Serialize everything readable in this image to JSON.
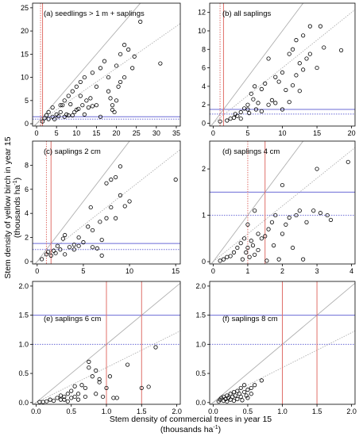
{
  "y_axis_label": {
    "line1": "Stem density of yellow birch in year 15",
    "line2_prefix": "(thousands ha",
    "line2_sup": "-1",
    "line2_suffix": ")"
  },
  "x_axis_label": {
    "line1": "Stem density of commercial trees in year 15",
    "line2_prefix": "(thousands ha",
    "line2_sup": "-1",
    "line2_suffix": ")"
  },
  "colors": {
    "frame": "#000000",
    "point": "#000000",
    "reference_line": "#b0b0b0",
    "vertical_ref": "#e0706a",
    "horizontal_ref": "#6b6bd6"
  },
  "chart_data": [
    {
      "type": "scatter",
      "title": "(a) seedlings > 1 m + saplings",
      "xlim": [
        -1,
        36
      ],
      "ylim": [
        -0.5,
        26
      ],
      "xticks": [
        "0",
        "5",
        "10",
        "15",
        "20",
        "25",
        "30",
        "35"
      ],
      "xtick_values": [
        0,
        5,
        10,
        15,
        20,
        25,
        30,
        35
      ],
      "yticks": [
        "0",
        "5",
        "10",
        "15",
        "20",
        "25"
      ],
      "ytick_values": [
        0,
        5,
        10,
        15,
        20,
        25
      ],
      "vlines_solid": [
        1.5
      ],
      "vlines_dotted": [
        1.0
      ],
      "hlines_solid": [
        1.5
      ],
      "hlines_dotted": [
        1.0
      ],
      "lines": [
        {
          "style": "solid",
          "slope": 1
        },
        {
          "style": "dotted",
          "slope": 0.6
        }
      ],
      "points": [
        [
          1.5,
          0.5
        ],
        [
          2,
          1.2
        ],
        [
          2.5,
          1.8
        ],
        [
          3,
          1
        ],
        [
          3,
          2.5
        ],
        [
          4,
          3.5
        ],
        [
          4,
          1.5
        ],
        [
          4.5,
          1
        ],
        [
          5,
          2
        ],
        [
          5.5,
          1.6
        ],
        [
          6,
          4
        ],
        [
          6,
          2.5
        ],
        [
          6.5,
          4
        ],
        [
          7,
          1.5
        ],
        [
          7,
          5
        ],
        [
          7.5,
          2
        ],
        [
          8,
          1.8
        ],
        [
          8,
          6
        ],
        [
          8.5,
          4.2
        ],
        [
          9,
          7
        ],
        [
          9,
          1.8
        ],
        [
          9.5,
          2.5
        ],
        [
          10,
          3
        ],
        [
          10,
          8
        ],
        [
          10.5,
          3.2
        ],
        [
          11,
          6
        ],
        [
          11,
          9
        ],
        [
          11.5,
          4
        ],
        [
          12,
          2
        ],
        [
          12,
          10
        ],
        [
          12.5,
          5
        ],
        [
          13,
          3.5
        ],
        [
          13.5,
          5.5
        ],
        [
          14,
          3.8
        ],
        [
          14,
          11
        ],
        [
          15,
          4
        ],
        [
          15,
          8
        ],
        [
          16,
          12
        ],
        [
          16,
          1.5
        ],
        [
          17,
          13.5
        ],
        [
          18,
          7
        ],
        [
          18,
          10
        ],
        [
          18.5,
          5.5
        ],
        [
          19,
          3
        ],
        [
          19,
          4
        ],
        [
          19.5,
          2.5
        ],
        [
          20,
          5
        ],
        [
          20,
          12.5
        ],
        [
          20.5,
          8
        ],
        [
          21,
          9
        ],
        [
          21,
          15
        ],
        [
          22,
          17
        ],
        [
          22,
          10
        ],
        [
          23,
          16
        ],
        [
          24,
          12
        ],
        [
          24.5,
          14.5
        ],
        [
          26,
          22
        ],
        [
          31,
          13
        ]
      ]
    },
    {
      "type": "scatter",
      "title": "(b) all saplings",
      "xlim": [
        -0.5,
        20.5
      ],
      "ylim": [
        -0.3,
        13
      ],
      "xticks": [
        "0",
        "5",
        "10",
        "15",
        "20"
      ],
      "xtick_values": [
        0,
        5,
        10,
        15,
        20
      ],
      "yticks": [
        "0",
        "2",
        "4",
        "6",
        "8",
        "10",
        "12"
      ],
      "ytick_values": [
        0,
        2,
        4,
        6,
        8,
        10,
        12
      ],
      "vlines_solid": [
        1.5
      ],
      "vlines_dotted": [
        1.0
      ],
      "hlines_solid": [
        1.5
      ],
      "hlines_dotted": [
        1.0
      ],
      "lines": [
        {
          "style": "solid",
          "slope": 1
        },
        {
          "style": "dotted",
          "slope": 0.6
        }
      ],
      "points": [
        [
          1,
          0.2
        ],
        [
          2,
          0.3
        ],
        [
          2.5,
          0.5
        ],
        [
          3,
          0.6
        ],
        [
          3.2,
          1
        ],
        [
          3.5,
          0.8
        ],
        [
          4,
          1.2
        ],
        [
          4,
          0.5
        ],
        [
          4.5,
          1.6
        ],
        [
          5,
          1.5
        ],
        [
          5,
          2
        ],
        [
          5.2,
          1.1
        ],
        [
          5.5,
          3.2
        ],
        [
          5.8,
          2.6
        ],
        [
          6,
          4
        ],
        [
          6.2,
          1.5
        ],
        [
          6.5,
          2.2
        ],
        [
          7,
          3.7
        ],
        [
          7,
          1.3
        ],
        [
          7.5,
          4.3
        ],
        [
          8,
          2
        ],
        [
          8,
          7
        ],
        [
          8.5,
          2.5
        ],
        [
          9,
          5
        ],
        [
          9,
          2.2
        ],
        [
          9.5,
          4.5
        ],
        [
          10,
          1.5
        ],
        [
          10,
          5.5
        ],
        [
          10.5,
          3.6
        ],
        [
          11,
          7.5
        ],
        [
          11,
          2.3
        ],
        [
          11.5,
          8
        ],
        [
          11.5,
          4.1
        ],
        [
          12,
          5.2
        ],
        [
          12,
          9
        ],
        [
          12.5,
          3.5
        ],
        [
          12.5,
          6.5
        ],
        [
          13,
          9.5
        ],
        [
          13,
          5.8
        ],
        [
          13.5,
          7
        ],
        [
          14,
          10.5
        ],
        [
          14,
          7.5
        ],
        [
          15,
          6
        ],
        [
          15.5,
          10.5
        ],
        [
          16,
          8.2
        ],
        [
          18.5,
          7.9
        ]
      ]
    },
    {
      "type": "scatter",
      "title": "(c) saplings 2 cm",
      "xlim": [
        -0.5,
        15.5
      ],
      "ylim": [
        -0.2,
        10
      ],
      "xticks": [
        "0",
        "5",
        "10",
        "15"
      ],
      "xtick_values": [
        0,
        5,
        10,
        15
      ],
      "yticks": [
        "0",
        "2",
        "4",
        "6",
        "8"
      ],
      "ytick_values": [
        0,
        2,
        4,
        6,
        8
      ],
      "vlines_solid": [
        1.5
      ],
      "vlines_dotted": [
        1.0
      ],
      "hlines_solid": [
        1.5
      ],
      "hlines_dotted": [
        1.0
      ],
      "lines": [
        {
          "style": "solid",
          "slope": 1
        },
        {
          "style": "dotted",
          "slope": 0.6
        }
      ],
      "points": [
        [
          0.5,
          0.2
        ],
        [
          1,
          0.6
        ],
        [
          1.2,
          0.8
        ],
        [
          1.5,
          0.5
        ],
        [
          1.8,
          0.9
        ],
        [
          2,
          0.7
        ],
        [
          2.2,
          1.3
        ],
        [
          2.5,
          1
        ],
        [
          2.8,
          1.9
        ],
        [
          3,
          0.6
        ],
        [
          3,
          2.2
        ],
        [
          3.5,
          1.2
        ],
        [
          4,
          1.4
        ],
        [
          4,
          1
        ],
        [
          4.5,
          2
        ],
        [
          4.5,
          1.3
        ],
        [
          5,
          1.6
        ],
        [
          5.5,
          2.9
        ],
        [
          5.8,
          4.5
        ],
        [
          6,
          1.2
        ],
        [
          6,
          2.6
        ],
        [
          6.5,
          1.1
        ],
        [
          6.8,
          3.3
        ],
        [
          7,
          0.5
        ],
        [
          7,
          1.8
        ],
        [
          7.5,
          6.5
        ],
        [
          7.5,
          3.6
        ],
        [
          8,
          4.5
        ],
        [
          8,
          6.8
        ],
        [
          8.5,
          7
        ],
        [
          8.5,
          3.6
        ],
        [
          9,
          5.5
        ],
        [
          9,
          7.9
        ],
        [
          9.5,
          4.6
        ],
        [
          10,
          5
        ],
        [
          15,
          6.8
        ]
      ]
    },
    {
      "type": "scatter",
      "title": "(d) saplings 4 cm",
      "xlim": [
        -0.1,
        4.1
      ],
      "ylim": [
        -0.05,
        2.6
      ],
      "xticks": [
        "0",
        "1",
        "2",
        "3",
        "4"
      ],
      "xtick_values": [
        0,
        1,
        2,
        3,
        4
      ],
      "yticks": [
        "0",
        "1",
        "2"
      ],
      "ytick_values": [
        0,
        1,
        2
      ],
      "vlines_solid": [
        1.5
      ],
      "vlines_dotted": [
        1.0
      ],
      "hlines_solid": [
        1.5
      ],
      "hlines_dotted": [
        1.0
      ],
      "lines": [
        {
          "style": "solid",
          "slope": 1
        },
        {
          "style": "dotted",
          "slope": 0.6
        }
      ],
      "points": [
        [
          0.2,
          0.02
        ],
        [
          0.3,
          0.05
        ],
        [
          0.4,
          0.1
        ],
        [
          0.5,
          0.12
        ],
        [
          0.6,
          0.2
        ],
        [
          0.7,
          0.3
        ],
        [
          0.8,
          0.4
        ],
        [
          0.85,
          0.05
        ],
        [
          0.9,
          0.5
        ],
        [
          0.95,
          0.2
        ],
        [
          1,
          0.3
        ],
        [
          1,
          0.8
        ],
        [
          1.05,
          0.1
        ],
        [
          1.1,
          0.45
        ],
        [
          1.15,
          0.35
        ],
        [
          1.2,
          1.1
        ],
        [
          1.2,
          0.15
        ],
        [
          1.3,
          0.6
        ],
        [
          1.3,
          0.25
        ],
        [
          1.4,
          0.5
        ],
        [
          1.5,
          0.55
        ],
        [
          1.55,
          0.02
        ],
        [
          1.6,
          0.7
        ],
        [
          1.7,
          0.85
        ],
        [
          1.75,
          0.35
        ],
        [
          1.8,
          1.0
        ],
        [
          1.9,
          0.05
        ],
        [
          2,
          0.6
        ],
        [
          2,
          1.65
        ],
        [
          2.1,
          0.8
        ],
        [
          2.2,
          0.95
        ],
        [
          2.3,
          0.3
        ],
        [
          2.4,
          1.0
        ],
        [
          2.5,
          1.1
        ],
        [
          2.6,
          0.05
        ],
        [
          2.7,
          0.85
        ],
        [
          2.9,
          1.1
        ],
        [
          3,
          2.0
        ],
        [
          3.1,
          1.05
        ],
        [
          3.3,
          1.0
        ],
        [
          3.4,
          0.9
        ],
        [
          3.9,
          2.15
        ]
      ]
    },
    {
      "type": "scatter",
      "title": "(e) saplings 6 cm",
      "xlim": [
        -0.05,
        2.05
      ],
      "ylim": [
        -0.03,
        2.08
      ],
      "xticks": [
        "0.0",
        "0.5",
        "1.0",
        "1.5",
        "2.0"
      ],
      "xtick_values": [
        0,
        0.5,
        1.0,
        1.5,
        2.0
      ],
      "yticks": [
        "0.0",
        "0.5",
        "1.0",
        "1.5",
        "2.0"
      ],
      "ytick_values": [
        0,
        0.5,
        1.0,
        1.5,
        2.0
      ],
      "vlines_solid": [
        1.0,
        1.5
      ],
      "vlines_dotted": [],
      "hlines_solid": [
        1.5
      ],
      "hlines_dotted": [
        1.0
      ],
      "lines": [
        {
          "style": "solid",
          "slope": 1
        },
        {
          "style": "dotted",
          "slope": 0.6
        }
      ],
      "points": [
        [
          0.05,
          0.01
        ],
        [
          0.1,
          0.01
        ],
        [
          0.15,
          0.02
        ],
        [
          0.2,
          0.05
        ],
        [
          0.25,
          0.03
        ],
        [
          0.3,
          0.08
        ],
        [
          0.35,
          0.05
        ],
        [
          0.35,
          0.12
        ],
        [
          0.4,
          0.1
        ],
        [
          0.4,
          0.05
        ],
        [
          0.45,
          0.15
        ],
        [
          0.45,
          0.02
        ],
        [
          0.5,
          0.2
        ],
        [
          0.5,
          0.08
        ],
        [
          0.55,
          0.1
        ],
        [
          0.55,
          0.28
        ],
        [
          0.6,
          0.15
        ],
        [
          0.6,
          0.05
        ],
        [
          0.65,
          0.3
        ],
        [
          0.7,
          0.1
        ],
        [
          0.7,
          0.25
        ],
        [
          0.75,
          0.7
        ],
        [
          0.75,
          0.6
        ],
        [
          0.8,
          0.45
        ],
        [
          0.85,
          0.15
        ],
        [
          0.85,
          0.55
        ],
        [
          0.9,
          0.4
        ],
        [
          0.9,
          0.35
        ],
        [
          0.95,
          0.1
        ],
        [
          1.0,
          0.25
        ],
        [
          1.05,
          0.45
        ],
        [
          1.1,
          0.08
        ],
        [
          1.15,
          0.08
        ],
        [
          1.3,
          0.65
        ],
        [
          1.5,
          0.25
        ],
        [
          1.6,
          0.27
        ],
        [
          1.7,
          0.95
        ]
      ]
    },
    {
      "type": "scatter",
      "title": "(f) saplings 8 cm",
      "xlim": [
        -0.05,
        2.05
      ],
      "ylim": [
        -0.03,
        2.08
      ],
      "xticks": [
        "0.0",
        "0.5",
        "1.0",
        "1.5",
        "2.0"
      ],
      "xtick_values": [
        0,
        0.5,
        1.0,
        1.5,
        2.0
      ],
      "yticks": [
        "0.0",
        "0.5",
        "1.0",
        "1.5",
        "2.0"
      ],
      "ytick_values": [
        0,
        0.5,
        1.0,
        1.5,
        2.0
      ],
      "vlines_solid": [
        1.0,
        1.5
      ],
      "vlines_dotted": [],
      "hlines_solid": [
        1.5
      ],
      "hlines_dotted": [
        1.0
      ],
      "lines": [
        {
          "style": "solid",
          "slope": 1
        },
        {
          "style": "dotted",
          "slope": 0.6
        }
      ],
      "points": [
        [
          0.08,
          0.02
        ],
        [
          0.1,
          0.05
        ],
        [
          0.12,
          0.08
        ],
        [
          0.15,
          0.03
        ],
        [
          0.15,
          0.1
        ],
        [
          0.18,
          0.06
        ],
        [
          0.2,
          0.12
        ],
        [
          0.2,
          0.02
        ],
        [
          0.22,
          0.08
        ],
        [
          0.25,
          0.15
        ],
        [
          0.25,
          0.05
        ],
        [
          0.28,
          0.1
        ],
        [
          0.3,
          0.18
        ],
        [
          0.3,
          0.03
        ],
        [
          0.32,
          0.12
        ],
        [
          0.35,
          0.2
        ],
        [
          0.35,
          0.06
        ],
        [
          0.38,
          0.15
        ],
        [
          0.4,
          0.1
        ],
        [
          0.4,
          0.25
        ],
        [
          0.42,
          0.04
        ],
        [
          0.45,
          0.18
        ],
        [
          0.45,
          0.3
        ],
        [
          0.48,
          0.12
        ],
        [
          0.5,
          0.22
        ],
        [
          0.5,
          0.08
        ],
        [
          0.55,
          0.25
        ],
        [
          0.55,
          0.15
        ],
        [
          0.6,
          0.3
        ],
        [
          0.7,
          0.38
        ]
      ]
    }
  ]
}
